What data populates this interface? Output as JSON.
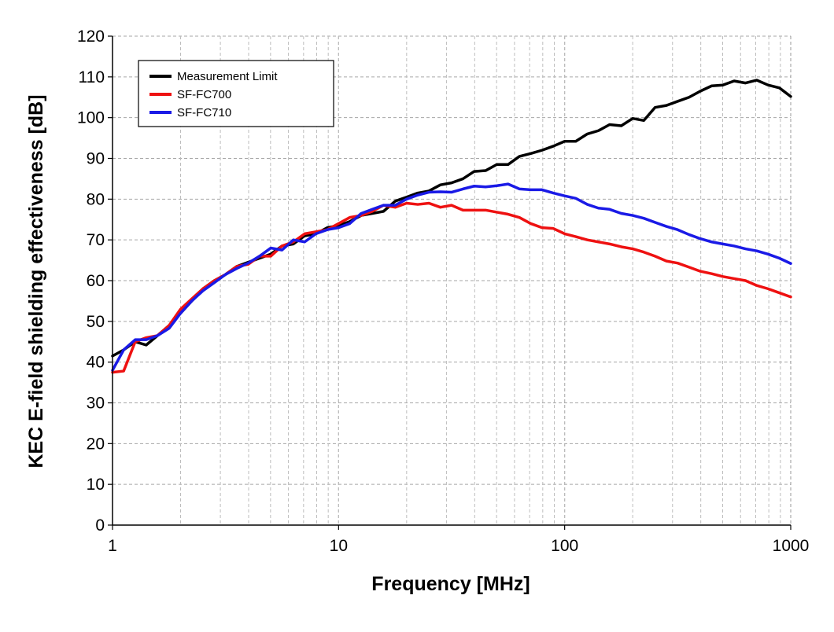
{
  "chart_data": {
    "type": "line",
    "title": "",
    "xlabel": "Frequency [MHz]",
    "ylabel": "KEC E-field shielding effectiveness [dB]",
    "x_scale": "log",
    "xlim": [
      1,
      1000
    ],
    "ylim": [
      0,
      120
    ],
    "x_ticks": [
      1,
      10,
      100,
      1000
    ],
    "x_tick_labels": [
      "1",
      "10",
      "100",
      "1000"
    ],
    "y_ticks": [
      0,
      10,
      20,
      30,
      40,
      50,
      60,
      70,
      80,
      90,
      100,
      110,
      120
    ],
    "y_tick_labels": [
      "0",
      "10",
      "20",
      "30",
      "40",
      "50",
      "60",
      "70",
      "80",
      "90",
      "100",
      "110",
      "120"
    ],
    "grid": {
      "major": true,
      "minor_x": true,
      "style": "dashed"
    },
    "legend": {
      "placement": "top-left",
      "framed": true
    },
    "series": [
      {
        "name": "Measurement Limit",
        "color": "#000000",
        "x": [
          1,
          1.12,
          1.26,
          1.41,
          1.58,
          1.78,
          2,
          2.24,
          2.51,
          2.82,
          3.16,
          3.55,
          3.98,
          4.47,
          5.01,
          5.62,
          6.31,
          7.08,
          7.94,
          8.91,
          10,
          11.2,
          12.6,
          14.1,
          15.8,
          17.8,
          20,
          22.4,
          25.1,
          28.2,
          31.6,
          35.5,
          39.8,
          44.7,
          50.1,
          56.2,
          63.1,
          70.8,
          79.4,
          89.1,
          100,
          112,
          126,
          141,
          158,
          178,
          200,
          224,
          251,
          282,
          316,
          355,
          398,
          447,
          501,
          562,
          631,
          708,
          794,
          891,
          1000
        ],
        "y": [
          41.5,
          43.0,
          45.0,
          44.2,
          46.5,
          49.0,
          52.0,
          55.0,
          58.0,
          60.0,
          61.5,
          63.5,
          64.5,
          65.5,
          66.5,
          68.5,
          69.0,
          71.0,
          71.5,
          73.0,
          73.5,
          74.5,
          76.0,
          76.5,
          77.0,
          79.5,
          80.5,
          81.5,
          82.0,
          83.5,
          84.0,
          85.0,
          86.8,
          87.0,
          88.5,
          88.5,
          90.5,
          91.2,
          92.0,
          93.0,
          94.2,
          94.2,
          96.0,
          96.8,
          98.3,
          98.0,
          99.8,
          99.3,
          102.5,
          103.0,
          104.0,
          105.0,
          106.5,
          107.8,
          108.0,
          109.0,
          108.5,
          109.2,
          108.0,
          107.3,
          105.2
        ]
      },
      {
        "name": "SF-FC700",
        "color": "#ee1111",
        "x": [
          1,
          1.12,
          1.26,
          1.41,
          1.58,
          1.78,
          2,
          2.24,
          2.51,
          2.82,
          3.16,
          3.55,
          3.98,
          4.47,
          5.01,
          5.62,
          6.31,
          7.08,
          7.94,
          8.91,
          10,
          11.2,
          12.6,
          14.1,
          15.8,
          17.8,
          20,
          22.4,
          25.1,
          28.2,
          31.6,
          35.5,
          39.8,
          44.7,
          50.1,
          56.2,
          63.1,
          70.8,
          79.4,
          89.1,
          100,
          112,
          126,
          141,
          158,
          178,
          200,
          224,
          251,
          282,
          316,
          355,
          398,
          447,
          501,
          562,
          631,
          708,
          794,
          891,
          1000
        ],
        "y": [
          37.5,
          37.8,
          45.0,
          46.0,
          46.5,
          49.0,
          53.0,
          55.5,
          58.0,
          60.0,
          61.5,
          63.5,
          64.0,
          66.0,
          66.0,
          68.5,
          69.5,
          71.5,
          72.0,
          72.5,
          74.0,
          75.5,
          76.0,
          77.0,
          78.5,
          78.0,
          79.0,
          78.7,
          79.0,
          78.0,
          78.5,
          77.3,
          77.3,
          77.3,
          76.8,
          76.3,
          75.5,
          74.0,
          73.0,
          72.8,
          71.5,
          70.8,
          70.0,
          69.5,
          69.0,
          68.3,
          67.8,
          67.0,
          66.0,
          64.8,
          64.3,
          63.3,
          62.3,
          61.7,
          61.0,
          60.5,
          60.0,
          58.8,
          58.0,
          57.0,
          56.0
        ]
      },
      {
        "name": "SF-FC710",
        "color": "#1a1ae6",
        "x": [
          1,
          1.12,
          1.26,
          1.41,
          1.58,
          1.78,
          2,
          2.24,
          2.51,
          2.82,
          3.16,
          3.55,
          3.98,
          4.47,
          5.01,
          5.62,
          6.31,
          7.08,
          7.94,
          8.91,
          10,
          11.2,
          12.6,
          14.1,
          15.8,
          17.8,
          20,
          22.4,
          25.1,
          28.2,
          31.6,
          35.5,
          39.8,
          44.7,
          50.1,
          56.2,
          63.1,
          70.8,
          79.4,
          89.1,
          100,
          112,
          126,
          141,
          158,
          178,
          200,
          224,
          251,
          282,
          316,
          355,
          398,
          447,
          501,
          562,
          631,
          708,
          794,
          891,
          1000
        ],
        "y": [
          38.0,
          43.0,
          45.5,
          45.5,
          46.5,
          48.3,
          52.0,
          55.0,
          57.5,
          59.5,
          61.5,
          63.0,
          64.3,
          66.0,
          68.0,
          67.5,
          70.0,
          69.5,
          71.5,
          72.5,
          73.0,
          74.0,
          76.5,
          77.5,
          78.5,
          78.5,
          80.0,
          81.0,
          81.7,
          81.8,
          81.7,
          82.5,
          83.2,
          83.0,
          83.3,
          83.7,
          82.5,
          82.3,
          82.3,
          81.5,
          80.8,
          80.2,
          78.7,
          77.8,
          77.5,
          76.5,
          76.0,
          75.3,
          74.3,
          73.3,
          72.5,
          71.3,
          70.3,
          69.5,
          69.0,
          68.5,
          67.8,
          67.3,
          66.5,
          65.5,
          64.2
        ]
      }
    ]
  }
}
